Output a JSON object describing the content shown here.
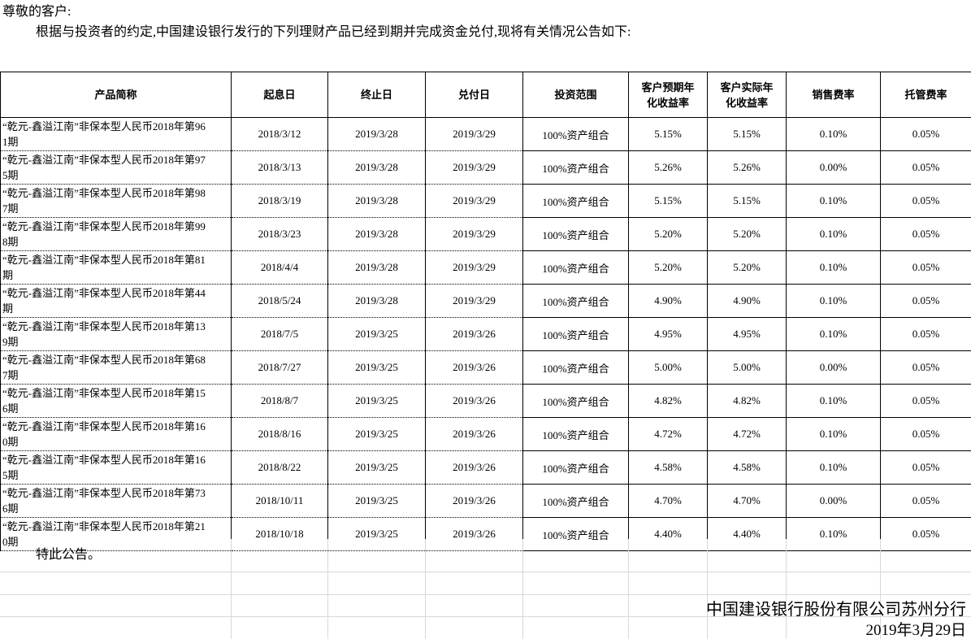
{
  "intro": {
    "salutation": "尊敬的客户:",
    "body": "根据与投资者的约定,中国建设银行发行的下列理财产品已经到期并完成资金兑付,现将有关情况公告如下:"
  },
  "table": {
    "headers": [
      "产品简称",
      "起息日",
      "终止日",
      "兑付日",
      "投资范围",
      "客户预期年化收益率",
      "客户实际年化收益率",
      "销售费率",
      "托管费率"
    ],
    "rows": [
      [
        "“乾元-鑫溢江南”非保本型人民币2018年第961期",
        "2018/3/12",
        "2019/3/28",
        "2019/3/29",
        "100%资产组合",
        "5.15%",
        "5.15%",
        "0.10%",
        "0.05%"
      ],
      [
        "“乾元-鑫溢江南”非保本型人民币2018年第975期",
        "2018/3/13",
        "2019/3/28",
        "2019/3/29",
        "100%资产组合",
        "5.26%",
        "5.26%",
        "0.00%",
        "0.05%"
      ],
      [
        "“乾元-鑫溢江南”非保本型人民币2018年第987期",
        "2018/3/19",
        "2019/3/28",
        "2019/3/29",
        "100%资产组合",
        "5.15%",
        "5.15%",
        "0.10%",
        "0.05%"
      ],
      [
        "“乾元-鑫溢江南”非保本型人民币2018年第998期",
        "2018/3/23",
        "2019/3/28",
        "2019/3/29",
        "100%资产组合",
        "5.20%",
        "5.20%",
        "0.10%",
        "0.05%"
      ],
      [
        "“乾元-鑫溢江南”非保本型人民币2018年第81期",
        "2018/4/4",
        "2019/3/28",
        "2019/3/29",
        "100%资产组合",
        "5.20%",
        "5.20%",
        "0.10%",
        "0.05%"
      ],
      [
        "“乾元-鑫溢江南”非保本型人民币2018年第44期",
        "2018/5/24",
        "2019/3/28",
        "2019/3/29",
        "100%资产组合",
        "4.90%",
        "4.90%",
        "0.10%",
        "0.05%"
      ],
      [
        "“乾元-鑫溢江南”非保本型人民币2018年第139期",
        "2018/7/5",
        "2019/3/25",
        "2019/3/26",
        "100%资产组合",
        "4.95%",
        "4.95%",
        "0.10%",
        "0.05%"
      ],
      [
        "“乾元-鑫溢江南”非保本型人民币2018年第687期",
        "2018/7/27",
        "2019/3/25",
        "2019/3/26",
        "100%资产组合",
        "5.00%",
        "5.00%",
        "0.00%",
        "0.05%"
      ],
      [
        "“乾元-鑫溢江南”非保本型人民币2018年第156期",
        "2018/8/7",
        "2019/3/25",
        "2019/3/26",
        "100%资产组合",
        "4.82%",
        "4.82%",
        "0.10%",
        "0.05%"
      ],
      [
        "“乾元-鑫溢江南”非保本型人民币2018年第160期",
        "2018/8/16",
        "2019/3/25",
        "2019/3/26",
        "100%资产组合",
        "4.72%",
        "4.72%",
        "0.10%",
        "0.05%"
      ],
      [
        "“乾元-鑫溢江南”非保本型人民币2018年第165期",
        "2018/8/22",
        "2019/3/25",
        "2019/3/26",
        "100%资产组合",
        "4.58%",
        "4.58%",
        "0.10%",
        "0.05%"
      ],
      [
        "“乾元-鑫溢江南”非保本型人民币2018年第736期",
        "2018/10/11",
        "2019/3/25",
        "2019/3/26",
        "100%资产组合",
        "4.70%",
        "4.70%",
        "0.00%",
        "0.05%"
      ],
      [
        "“乾元-鑫溢江南”非保本型人民币2018年第210期",
        "2018/10/18",
        "2019/3/25",
        "2019/3/26",
        "100%资产组合",
        "4.40%",
        "4.40%",
        "0.10%",
        "0.05%"
      ]
    ]
  },
  "footer": {
    "notice": "特此公告。",
    "signature": "中国建设银行股份有限公司苏州分行",
    "date": "2019年3月29日"
  },
  "colors": {
    "table_border": "#000000",
    "faint_gridline": "#d8d8d8"
  }
}
